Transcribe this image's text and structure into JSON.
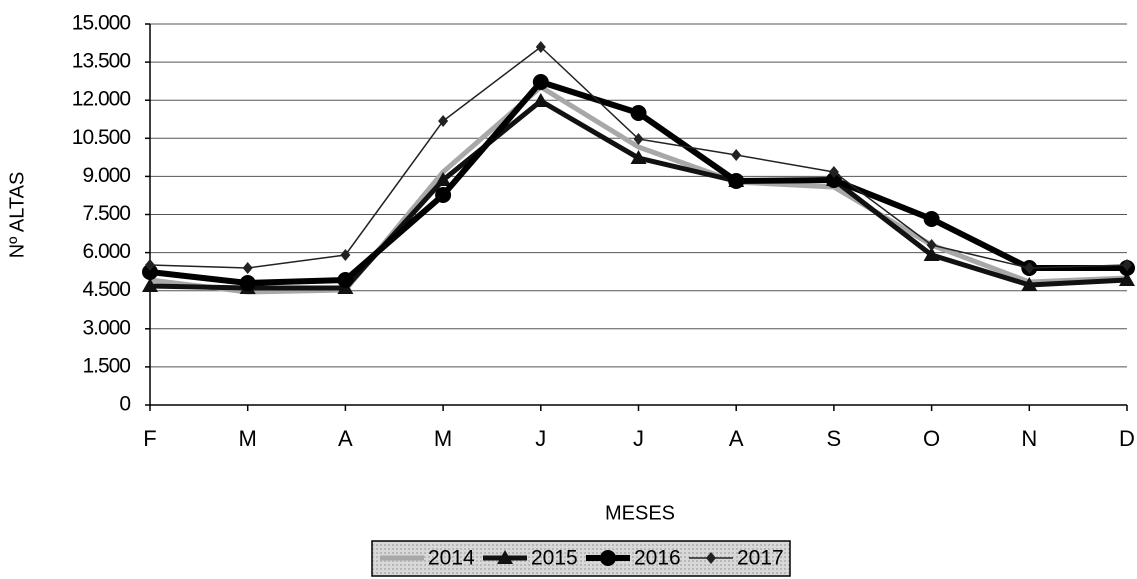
{
  "chart_data": {
    "type": "line",
    "x_label": "MESES",
    "y_label": "Nº ALTAS",
    "categories": [
      "F",
      "M",
      "A",
      "M",
      "J",
      "J",
      "A",
      "S",
      "O",
      "N",
      "D"
    ],
    "series": [
      {
        "name": "2014",
        "color": "#a8a8a8",
        "marker": "none",
        "values": [
          4921,
          4449,
          4528,
          9173,
          12520,
          10157,
          8780,
          8583,
          6299,
          4843,
          5000
        ]
      },
      {
        "name": "2015",
        "color": "#111111",
        "marker": "triangle",
        "values": [
          4685,
          4606,
          4606,
          8858,
          11968,
          9724,
          8819,
          8858,
          5906,
          4724,
          4921
        ]
      },
      {
        "name": "2016",
        "color": "#000000",
        "marker": "circle",
        "values": [
          5236,
          4803,
          4921,
          8268,
          12717,
          11496,
          8819,
          8858,
          7323,
          5394,
          5394
        ]
      },
      {
        "name": "2017",
        "color": "#222222",
        "marker": "diamond",
        "values": [
          5512,
          5394,
          5906,
          11181,
          14094,
          10472,
          9843,
          9173,
          6299,
          5394,
          5512
        ]
      }
    ],
    "ylim": [
      0,
      15000
    ],
    "yticks": [
      0,
      {
        "value": 1500,
        "label": "1.500"
      },
      {
        "value": 3000,
        "label": "3.000"
      },
      {
        "value": 4500,
        "label": "4.500"
      },
      {
        "value": 6000,
        "label": "6.000"
      },
      {
        "value": 7500,
        "label": "7.500"
      },
      {
        "value": 9000,
        "label": "9.000"
      },
      {
        "value": 10500,
        "label": "10.500"
      },
      {
        "value": 12000,
        "label": "12.000"
      },
      {
        "value": 13500,
        "label": "13.500"
      },
      {
        "value": 15000,
        "label": "15.000"
      }
    ],
    "grid": true,
    "legend": "bottom"
  }
}
